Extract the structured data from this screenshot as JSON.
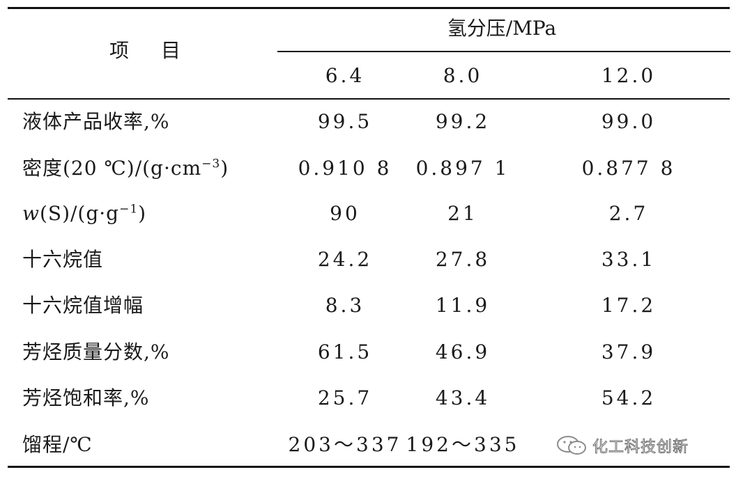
{
  "table": {
    "item_header": "项目",
    "group_header": "氢分压/MPa",
    "columns": [
      "6.4",
      "8.0",
      "12.0"
    ],
    "rows": [
      {
        "label_html": "液体产品收率,%",
        "values": [
          "99.5",
          "99.2",
          "99.0"
        ]
      },
      {
        "label_html": "密度(20 ℃)/(g·cm<sup>−3</sup>)",
        "values": [
          "0.910 8",
          "0.897 1",
          "0.877 8"
        ]
      },
      {
        "label_html": "<i>w</i>(S)/(g·g<sup>−1</sup>)",
        "values": [
          "90",
          "21",
          "2.7"
        ]
      },
      {
        "label_html": "十六烷值",
        "values": [
          "24.2",
          "27.8",
          "33.1"
        ]
      },
      {
        "label_html": "十六烷值增幅",
        "values": [
          "8.3",
          "11.9",
          "17.2"
        ]
      },
      {
        "label_html": "芳烃质量分数,%",
        "values": [
          "61.5",
          "46.9",
          "37.9"
        ]
      },
      {
        "label_html": "芳烃饱和率,%",
        "values": [
          "25.7",
          "43.4",
          "54.2"
        ]
      },
      {
        "label_html": "馏程/℃",
        "values": [
          "203～337",
          "192～335",
          ""
        ]
      }
    ]
  },
  "watermark": {
    "text": "化工科技创新",
    "icon": "wechat-icon"
  }
}
